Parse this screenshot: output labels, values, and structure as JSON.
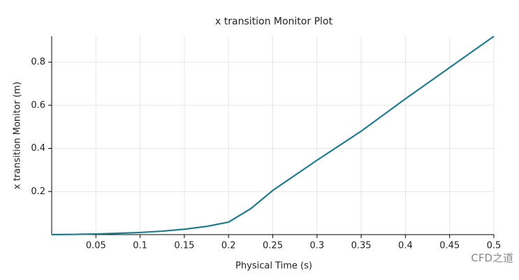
{
  "chart_data": {
    "type": "line",
    "title": "x transition Monitor Plot",
    "x_label": "Physical Time (s)",
    "y_label": "x transition Monitor (m)",
    "x": [
      0,
      0.025,
      0.05,
      0.075,
      0.1,
      0.125,
      0.15,
      0.175,
      0.2,
      0.225,
      0.25,
      0.275,
      0.3,
      0.35,
      0.4,
      0.45,
      0.5
    ],
    "series": [
      {
        "name": "x transition Monitor",
        "color": "#1f7b8c",
        "values": [
          0,
          0.001,
          0.003,
          0.006,
          0.01,
          0.016,
          0.025,
          0.038,
          0.058,
          0.12,
          0.205,
          0.275,
          0.345,
          0.48,
          0.63,
          0.775,
          0.92
        ]
      }
    ],
    "xlim": [
      0,
      0.5
    ],
    "ylim": [
      0,
      0.92
    ],
    "xticks": [
      0.05,
      0.1,
      0.15,
      0.2,
      0.25,
      0.3,
      0.35,
      0.4,
      0.45,
      0.5
    ],
    "yticks": [
      0.2,
      0.4,
      0.6,
      0.8
    ],
    "grid": true
  },
  "watermark": "CFD之道"
}
